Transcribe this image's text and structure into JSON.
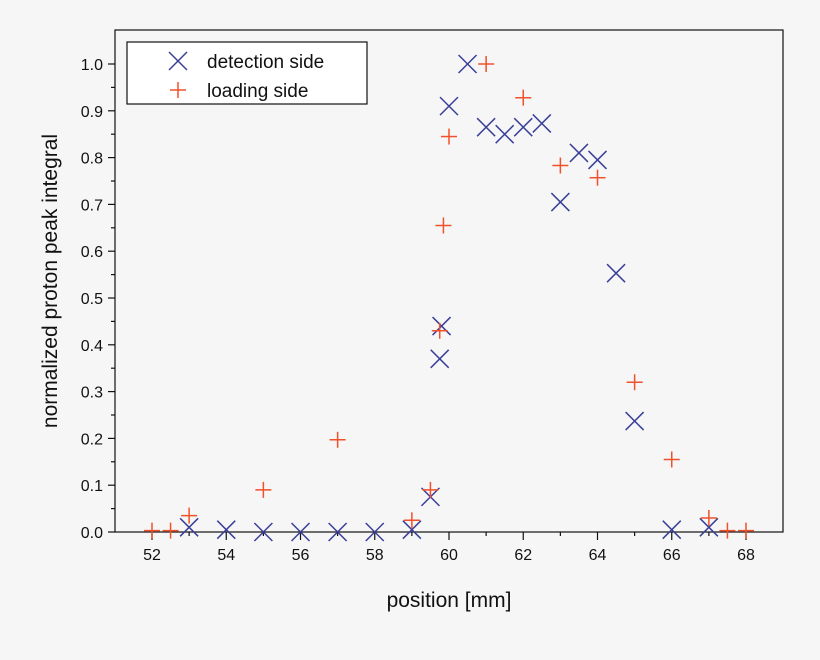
{
  "chart_data": {
    "type": "scatter",
    "title": "",
    "xlabel": "position [mm]",
    "ylabel": "normalized proton peak integral",
    "xlim": [
      51,
      69
    ],
    "ylim": [
      0,
      1.05
    ],
    "xticks": [
      52,
      54,
      56,
      58,
      60,
      62,
      64,
      66,
      68
    ],
    "yticks": [
      0.0,
      0.1,
      0.2,
      0.3,
      0.4,
      0.5,
      0.6,
      0.7,
      0.8,
      0.9,
      1.0
    ],
    "grid": false,
    "legend_position": "top-left",
    "series": [
      {
        "name": "detection side",
        "marker": "x",
        "color": "#3a3f98",
        "x": [
          53,
          54,
          55,
          56,
          57,
          58,
          59,
          59.5,
          59.75,
          59.8,
          60,
          60.5,
          61,
          61.5,
          62,
          62.5,
          63,
          63.5,
          64,
          64.5,
          65,
          66,
          67
        ],
        "y": [
          0.01,
          0.005,
          0,
          0,
          0,
          0,
          0.005,
          0.075,
          0.37,
          0.44,
          0.91,
          1.0,
          0.865,
          0.85,
          0.865,
          0.873,
          0.705,
          0.81,
          0.795,
          0.553,
          0.237,
          0.005,
          0.01
        ]
      },
      {
        "name": "loading side",
        "marker": "+",
        "color": "#f0502a",
        "x": [
          52,
          52.5,
          53,
          55,
          57,
          59,
          59.5,
          59.75,
          59.85,
          60,
          61,
          62,
          63,
          64,
          65,
          66,
          67,
          67.5,
          68
        ],
        "y": [
          0.003,
          0.003,
          0.035,
          0.09,
          0.197,
          0.025,
          0.09,
          0.43,
          0.655,
          0.845,
          1.0,
          0.928,
          0.783,
          0.757,
          0.32,
          0.155,
          0.03,
          0.003,
          0.003
        ]
      }
    ]
  }
}
